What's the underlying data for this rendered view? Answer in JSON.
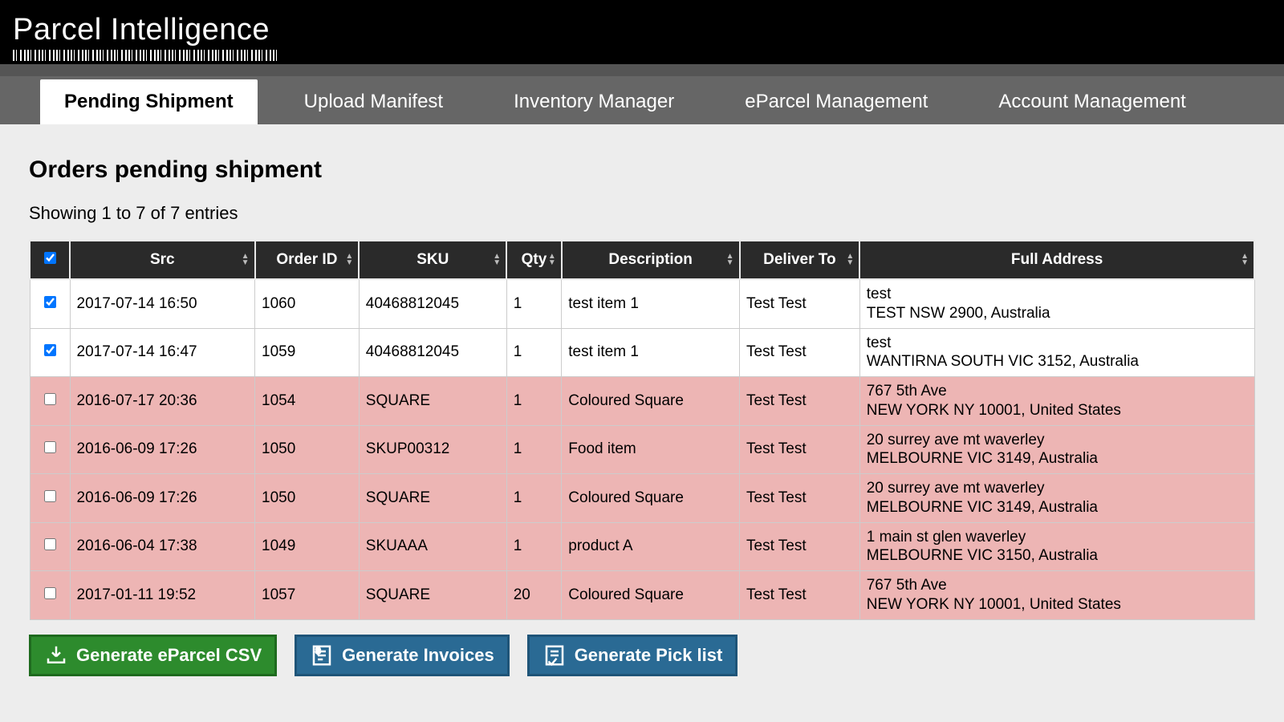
{
  "brand": "Parcel Intelligence",
  "tabs": [
    {
      "label": "Pending Shipment",
      "active": true
    },
    {
      "label": "Upload Manifest",
      "active": false
    },
    {
      "label": "Inventory Manager",
      "active": false
    },
    {
      "label": "eParcel Management",
      "active": false
    },
    {
      "label": "Account Management",
      "active": false
    }
  ],
  "page_title": "Orders pending shipment",
  "showing_text": "Showing 1 to 7 of 7 entries",
  "columns": [
    "Src",
    "Order ID",
    "SKU",
    "Qty",
    "Description",
    "Deliver To",
    "Full Address"
  ],
  "select_all_checked": true,
  "rows": [
    {
      "checked": true,
      "pink": false,
      "src": "2017-07-14 16:50",
      "order_id": "1060",
      "sku": "40468812045",
      "qty": "1",
      "desc": "test item 1",
      "deliver": "Test Test",
      "addr1": "test",
      "addr2": "TEST NSW 2900, Australia"
    },
    {
      "checked": true,
      "pink": false,
      "src": "2017-07-14 16:47",
      "order_id": "1059",
      "sku": "40468812045",
      "qty": "1",
      "desc": "test item 1",
      "deliver": "Test Test",
      "addr1": "test",
      "addr2": "WANTIRNA SOUTH VIC 3152, Australia"
    },
    {
      "checked": false,
      "pink": true,
      "src": "2016-07-17 20:36",
      "order_id": "1054",
      "sku": "SQUARE",
      "qty": "1",
      "desc": "Coloured Square",
      "deliver": "Test Test",
      "addr1": "767 5th Ave",
      "addr2": "NEW YORK NY 10001, United States"
    },
    {
      "checked": false,
      "pink": true,
      "src": "2016-06-09 17:26",
      "order_id": "1050",
      "sku": "SKUP00312",
      "qty": "1",
      "desc": "Food item",
      "deliver": "Test Test",
      "addr1": "20 surrey ave mt waverley",
      "addr2": "MELBOURNE VIC 3149, Australia"
    },
    {
      "checked": false,
      "pink": true,
      "src": "2016-06-09 17:26",
      "order_id": "1050",
      "sku": "SQUARE",
      "qty": "1",
      "desc": "Coloured Square",
      "deliver": "Test Test",
      "addr1": "20 surrey ave mt waverley",
      "addr2": "MELBOURNE VIC 3149, Australia"
    },
    {
      "checked": false,
      "pink": true,
      "src": "2016-06-04 17:38",
      "order_id": "1049",
      "sku": "SKUAAA",
      "qty": "1",
      "desc": "product A",
      "deliver": "Test Test",
      "addr1": "1 main st glen waverley",
      "addr2": "MELBOURNE VIC 3150, Australia"
    },
    {
      "checked": false,
      "pink": true,
      "src": "2017-01-11 19:52",
      "order_id": "1057",
      "sku": "SQUARE",
      "qty": "20",
      "desc": "Coloured Square",
      "deliver": "Test Test",
      "addr1": "767 5th Ave",
      "addr2": "NEW YORK NY 10001, United States"
    }
  ],
  "buttons": {
    "csv": "Generate eParcel CSV",
    "invoices": "Generate Invoices",
    "picklist": "Generate Pick list"
  },
  "colors": {
    "header_bg": "#2a2a2a",
    "tabbar_bg": "#666666",
    "pink_row": "#edb5b4",
    "btn_green": "#2d8b2d",
    "btn_blue": "#2a6a94",
    "page_bg": "#ededed"
  }
}
